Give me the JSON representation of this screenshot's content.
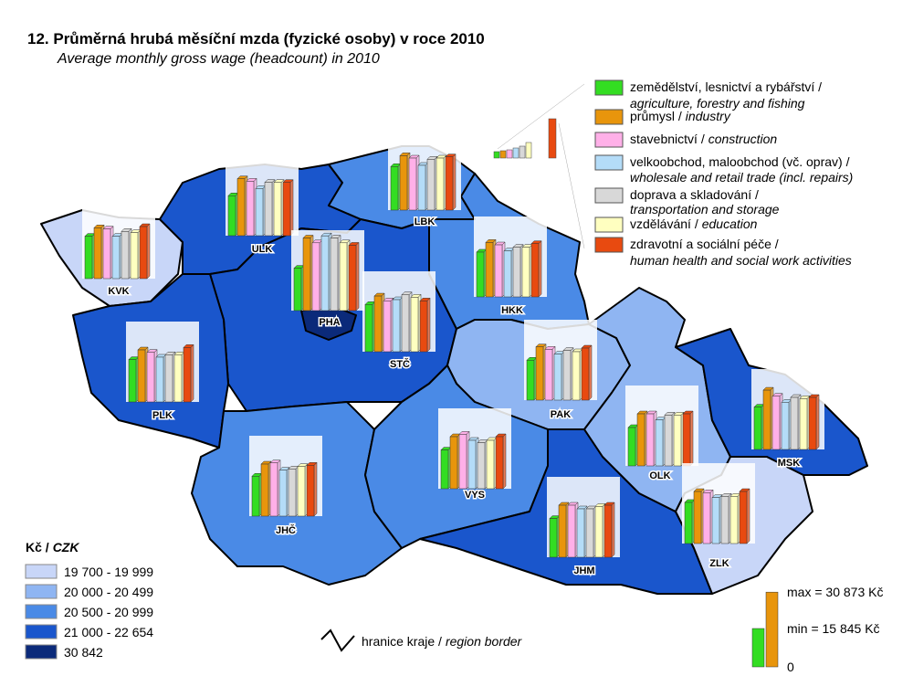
{
  "title": "12. Průměrná hrubá měsíční mzda (fyzické osoby) v roce 2010",
  "subtitle": "Average monthly gross wage (headcount) in 2010",
  "sectors": [
    {
      "name_cz": "zemědělství, lesnictví a rybářství /",
      "name_en": "agriculture, forestry and fishing",
      "color": "#33dd22"
    },
    {
      "name_cz": "průmysl /",
      "name_en": "industry",
      "color": "#e8950c"
    },
    {
      "name_cz": "stavebnictví /",
      "name_en": "construction",
      "color": "#ffb0e8"
    },
    {
      "name_cz": "velkoobchod, maloobchod (vč. oprav) /",
      "name_en": "wholesale and retail trade (incl. repairs)",
      "color": "#b4dcf8"
    },
    {
      "name_cz": "doprava a skladování /",
      "name_en": "transportation and storage",
      "color": "#d8d8d8"
    },
    {
      "name_cz": "vzdělávání /",
      "name_en": "education",
      "color": "#ffffc0"
    },
    {
      "name_cz": "zdravotní a sociální péče /",
      "name_en": "human health and social work activities",
      "color": "#e84a10"
    }
  ],
  "classes": {
    "title_cz": "Kč /",
    "title_en": "CZK",
    "items": [
      {
        "label": "19 700 - 19 999",
        "color": "#c8d6f8"
      },
      {
        "label": "20 000 - 20 499",
        "color": "#8fb5f2"
      },
      {
        "label": "20 500 - 20 999",
        "color": "#4a8ae6"
      },
      {
        "label": "21 000 - 22 654",
        "color": "#1a56cc"
      },
      {
        "label": "30 842",
        "color": "#0b2a7a"
      }
    ]
  },
  "regions": [
    {
      "code": "KVK",
      "class": 0,
      "values": [
        17500,
        21000,
        20500,
        17500,
        19500,
        19000,
        21500
      ]
    },
    {
      "code": "ULK",
      "class": 3,
      "values": [
        16500,
        23500,
        22500,
        19500,
        22000,
        22000,
        22000
      ]
    },
    {
      "code": "LBK",
      "class": 2,
      "values": [
        18000,
        22500,
        21500,
        18500,
        21000,
        21500,
        22000
      ]
    },
    {
      "code": "STČ",
      "class": 3,
      "values": [
        19500,
        23000,
        21000,
        21500,
        23500,
        22500,
        21000
      ]
    },
    {
      "code": "PHA",
      "class": 4,
      "values": [
        17500,
        30000,
        28000,
        30873,
        30000,
        28000,
        27000
      ]
    },
    {
      "code": "HKK",
      "class": 2,
      "values": [
        18500,
        22500,
        21500,
        19000,
        20500,
        20500,
        22000
      ]
    },
    {
      "code": "PAK",
      "class": 1,
      "values": [
        16500,
        22000,
        21000,
        19000,
        20500,
        20000,
        21500
      ]
    },
    {
      "code": "PLK",
      "class": 3,
      "values": [
        17500,
        21500,
        20500,
        18500,
        19500,
        19500,
        22500
      ]
    },
    {
      "code": "JHČ",
      "class": 2,
      "values": [
        16500,
        21500,
        22000,
        19000,
        19500,
        20500,
        21000
      ]
    },
    {
      "code": "VYS",
      "class": 2,
      "values": [
        16000,
        21500,
        22500,
        20000,
        19000,
        20000,
        21500
      ]
    },
    {
      "code": "JHM",
      "class": 3,
      "values": [
        16000,
        21500,
        21500,
        20000,
        20000,
        21000,
        21500
      ]
    },
    {
      "code": "OLK",
      "class": 1,
      "values": [
        15845,
        21500,
        21500,
        19000,
        21000,
        21000,
        21500
      ]
    },
    {
      "code": "ZLK",
      "class": 0,
      "values": [
        17000,
        21500,
        21000,
        19000,
        19500,
        19500,
        21500
      ]
    },
    {
      "code": "MSK",
      "class": 3,
      "values": [
        17500,
        24500,
        22000,
        19500,
        21500,
        21000,
        21500
      ]
    }
  ],
  "scale": {
    "max": {
      "value": 30873,
      "label": "max = 30 873 Kč"
    },
    "min": {
      "value": 15845,
      "label": "min = 15 845 Kč"
    },
    "zero": 0
  },
  "border_legend": {
    "cz": "hranice kraje /",
    "en": "region border"
  }
}
